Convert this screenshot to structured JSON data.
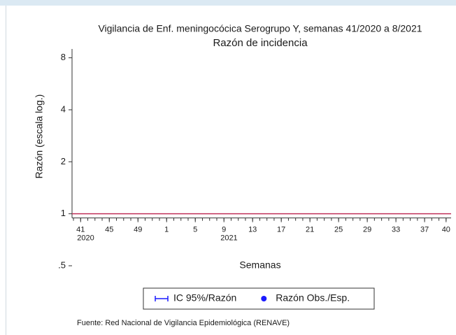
{
  "chart_data": {
    "type": "line",
    "title": "Vigilancia de Enf. meningocócica Serogrupo Y, semanas 41/2020 a 8/2021",
    "subtitle": "Razón de incidencia",
    "y_label": "Razón (escala log.)",
    "x_label": "Semanas",
    "log_scale_y": true,
    "ylim": [
      0.5,
      9
    ],
    "yticks": [
      {
        "value": 0.5,
        "label": ".5"
      },
      1,
      2,
      4,
      8
    ],
    "xlim": [
      -1.2,
      51.7
    ],
    "minor_xtick_step": 1,
    "xticks": [
      {
        "value": 0,
        "label": "41"
      },
      {
        "value": 4,
        "label": "45"
      },
      {
        "value": 8,
        "label": "49"
      },
      {
        "value": 12,
        "label": "1"
      },
      {
        "value": 16,
        "label": "5"
      },
      {
        "value": 20,
        "label": "9"
      },
      {
        "value": 24,
        "label": "13"
      },
      {
        "value": 28,
        "label": "17"
      },
      {
        "value": 32,
        "label": "21"
      },
      {
        "value": 36,
        "label": "25"
      },
      {
        "value": 40,
        "label": "29"
      },
      {
        "value": 44,
        "label": "33"
      },
      {
        "value": 48,
        "label": "37"
      },
      {
        "value": 51,
        "label": "40"
      }
    ],
    "year_labels": [
      {
        "value": 0,
        "label": "2020"
      },
      {
        "value": 20,
        "label": "2021"
      }
    ],
    "reference_line": {
      "value": 1,
      "color": "#c0305a"
    },
    "legend": [
      {
        "name": "IC 95%/Razón",
        "color": "#1a1aff",
        "marker": "range"
      },
      {
        "name": "Razón Obs./Esp.",
        "color": "#1a1aff",
        "marker": "dot"
      }
    ],
    "source": "Fuente: Red Nacional de Vigilancia Epidemiológica (RENAVE)"
  }
}
